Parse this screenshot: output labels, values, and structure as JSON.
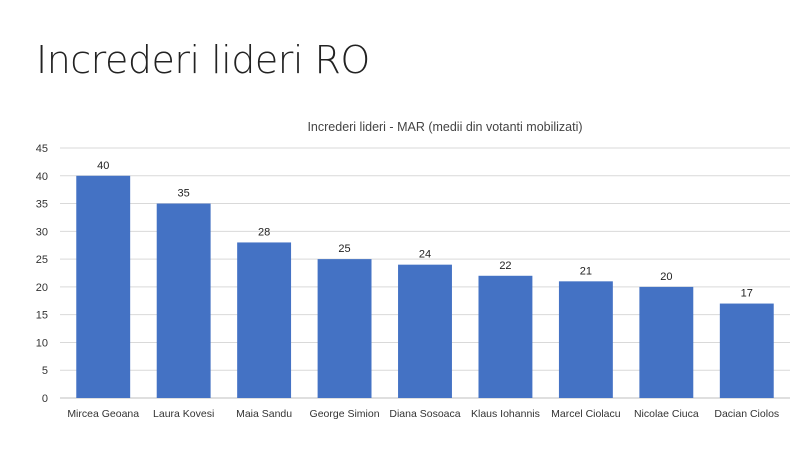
{
  "slide": {
    "title": "Increderi lideri RO"
  },
  "chart_data": {
    "type": "bar",
    "title": "Increderi lideri - MAR (medii din votanti mobilizati)",
    "categories": [
      "Mircea Geoana",
      "Laura Kovesi",
      "Maia Sandu",
      "George Simion",
      "Diana Sosoaca",
      "Klaus Iohannis",
      "Marcel Ciolacu",
      "Nicolae Ciuca",
      "Dacian Ciolos"
    ],
    "values": [
      40,
      35,
      28,
      25,
      24,
      22,
      21,
      20,
      17
    ],
    "xlabel": "",
    "ylabel": "",
    "ylim": [
      0,
      45
    ],
    "yticks": [
      0,
      5,
      10,
      15,
      20,
      25,
      30,
      35,
      40,
      45
    ],
    "grid": true,
    "data_labels": true,
    "bar_color": "#4472C4"
  }
}
